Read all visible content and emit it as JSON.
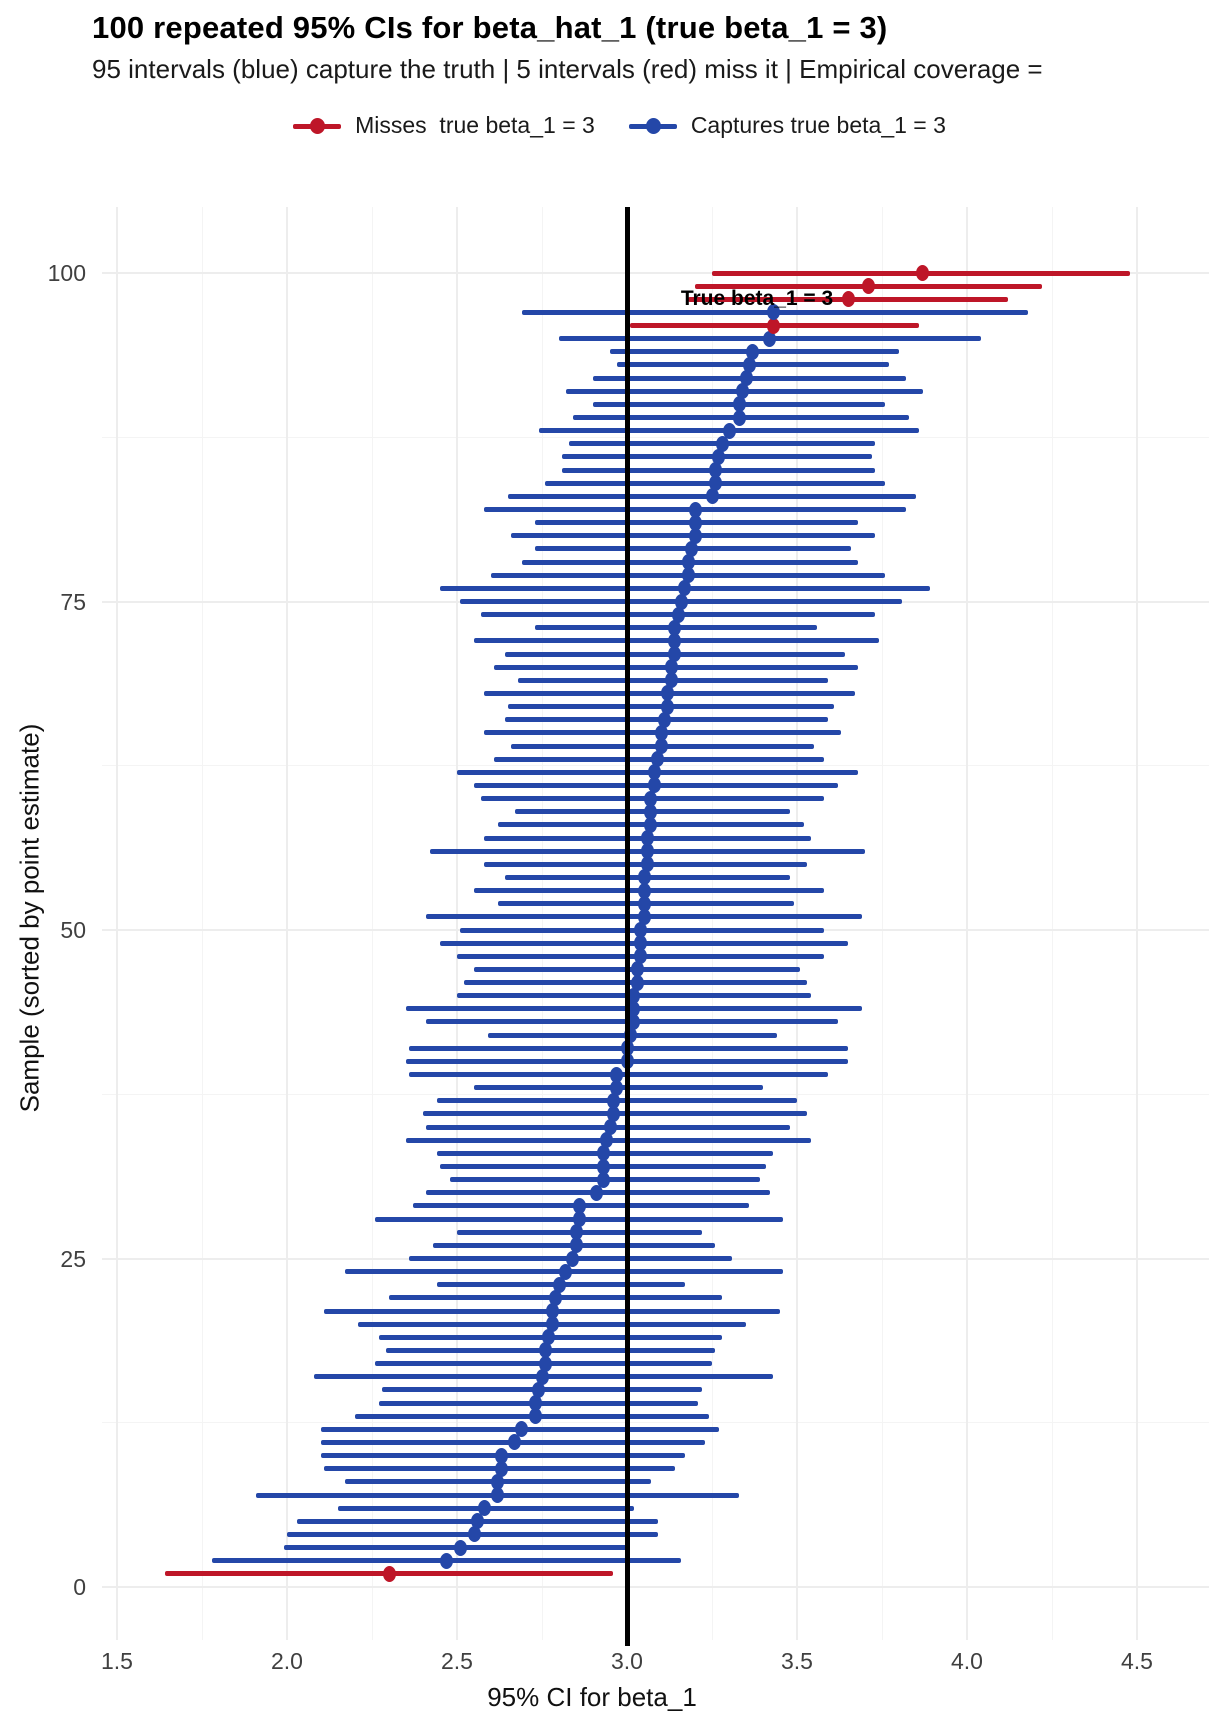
{
  "header": {
    "title": "100 repeated 95% CIs for beta_hat_1  (true beta_1 = 3)",
    "subtitle": "95 intervals (blue) capture the truth  |  5 intervals (red) miss it  |  Empirical coverage ="
  },
  "legend": {
    "items": [
      {
        "name": "misses",
        "label": "Misses  true beta_1 = 3",
        "color": "#BE1628"
      },
      {
        "name": "captures",
        "label": "Captures true beta_1 = 3",
        "color": "#2447A8"
      }
    ]
  },
  "annotation": {
    "text": "True beta_1 = 3"
  },
  "axes": {
    "x": {
      "title": "95% CI for beta_1",
      "tick_labels": [
        "1.5",
        "2.0",
        "2.5",
        "3.0",
        "3.5",
        "4.0",
        "4.5"
      ],
      "tick_values": [
        1.5,
        2.0,
        2.5,
        3.0,
        3.5,
        4.0,
        4.5
      ],
      "minor_values": [
        1.75,
        2.25,
        2.75,
        3.25,
        3.75,
        4.25
      ]
    },
    "y": {
      "title": "Sample (sorted by point estimate)",
      "tick_labels": [
        "0",
        "25",
        "50",
        "75",
        "100"
      ],
      "tick_values": [
        0,
        25,
        50,
        75,
        100
      ],
      "minor_values": [
        12.5,
        37.5,
        62.5,
        87.5
      ]
    }
  },
  "chart_data": {
    "type": "interval",
    "title": "100 repeated 95% CIs for beta_hat_1  (true beta_1 = 3)",
    "xlabel": "95% CI for beta_1",
    "ylabel": "Sample (sorted by point estimate)",
    "xlim": [
      1.45,
      4.71
    ],
    "ylim": [
      -4.5,
      104.5
    ],
    "grid": true,
    "legend_position": "top-center",
    "true_value": 3,
    "n_intervals": 100,
    "n_capture": 95,
    "n_miss": 5,
    "colors": {
      "capture": "#2447A8",
      "miss": "#BE1628",
      "reference_line": "#000000"
    },
    "columns": [
      "lower",
      "point",
      "upper",
      "miss_flag"
    ],
    "samples": [
      [
        1.64,
        2.3,
        2.96,
        1
      ],
      [
        1.78,
        2.47,
        3.16,
        0
      ],
      [
        1.99,
        2.51,
        3.01,
        0
      ],
      [
        2.0,
        2.55,
        3.09,
        0
      ],
      [
        2.03,
        2.56,
        3.09,
        0
      ],
      [
        2.15,
        2.58,
        3.02,
        0
      ],
      [
        1.91,
        2.62,
        3.33,
        0
      ],
      [
        2.17,
        2.62,
        3.07,
        0
      ],
      [
        2.11,
        2.63,
        3.14,
        0
      ],
      [
        2.1,
        2.63,
        3.17,
        0
      ],
      [
        2.1,
        2.67,
        3.23,
        0
      ],
      [
        2.1,
        2.69,
        3.27,
        0
      ],
      [
        2.2,
        2.73,
        3.24,
        0
      ],
      [
        2.27,
        2.73,
        3.21,
        0
      ],
      [
        2.28,
        2.74,
        3.22,
        0
      ],
      [
        2.08,
        2.75,
        3.43,
        0
      ],
      [
        2.26,
        2.76,
        3.25,
        0
      ],
      [
        2.29,
        2.76,
        3.26,
        0
      ],
      [
        2.27,
        2.77,
        3.28,
        0
      ],
      [
        2.21,
        2.78,
        3.35,
        0
      ],
      [
        2.11,
        2.78,
        3.45,
        0
      ],
      [
        2.3,
        2.79,
        3.28,
        0
      ],
      [
        2.44,
        2.8,
        3.17,
        0
      ],
      [
        2.17,
        2.82,
        3.46,
        0
      ],
      [
        2.36,
        2.84,
        3.31,
        0
      ],
      [
        2.43,
        2.85,
        3.26,
        0
      ],
      [
        2.5,
        2.85,
        3.22,
        0
      ],
      [
        2.26,
        2.86,
        3.46,
        0
      ],
      [
        2.37,
        2.86,
        3.36,
        0
      ],
      [
        2.41,
        2.91,
        3.42,
        0
      ],
      [
        2.48,
        2.93,
        3.39,
        0
      ],
      [
        2.45,
        2.93,
        3.41,
        0
      ],
      [
        2.44,
        2.93,
        3.43,
        0
      ],
      [
        2.35,
        2.94,
        3.54,
        0
      ],
      [
        2.41,
        2.95,
        3.48,
        0
      ],
      [
        2.4,
        2.96,
        3.53,
        0
      ],
      [
        2.44,
        2.96,
        3.5,
        0
      ],
      [
        2.55,
        2.97,
        3.4,
        0
      ],
      [
        2.36,
        2.97,
        3.59,
        0
      ],
      [
        2.35,
        3.0,
        3.65,
        0
      ],
      [
        2.36,
        3.0,
        3.65,
        0
      ],
      [
        2.59,
        3.01,
        3.44,
        0
      ],
      [
        2.41,
        3.02,
        3.62,
        0
      ],
      [
        2.35,
        3.02,
        3.69,
        0
      ],
      [
        2.5,
        3.02,
        3.54,
        0
      ],
      [
        2.52,
        3.03,
        3.53,
        0
      ],
      [
        2.55,
        3.03,
        3.51,
        0
      ],
      [
        2.5,
        3.04,
        3.58,
        0
      ],
      [
        2.45,
        3.04,
        3.65,
        0
      ],
      [
        2.51,
        3.04,
        3.58,
        0
      ],
      [
        2.41,
        3.05,
        3.69,
        0
      ],
      [
        2.62,
        3.05,
        3.49,
        0
      ],
      [
        2.55,
        3.05,
        3.58,
        0
      ],
      [
        2.64,
        3.05,
        3.48,
        0
      ],
      [
        2.58,
        3.06,
        3.53,
        0
      ],
      [
        2.42,
        3.06,
        3.7,
        0
      ],
      [
        2.58,
        3.06,
        3.54,
        0
      ],
      [
        2.62,
        3.07,
        3.52,
        0
      ],
      [
        2.67,
        3.07,
        3.48,
        0
      ],
      [
        2.57,
        3.07,
        3.58,
        0
      ],
      [
        2.55,
        3.08,
        3.62,
        0
      ],
      [
        2.5,
        3.08,
        3.68,
        0
      ],
      [
        2.61,
        3.09,
        3.58,
        0
      ],
      [
        2.66,
        3.1,
        3.55,
        0
      ],
      [
        2.58,
        3.1,
        3.63,
        0
      ],
      [
        2.64,
        3.11,
        3.59,
        0
      ],
      [
        2.65,
        3.12,
        3.61,
        0
      ],
      [
        2.58,
        3.12,
        3.67,
        0
      ],
      [
        2.68,
        3.13,
        3.59,
        0
      ],
      [
        2.61,
        3.13,
        3.68,
        0
      ],
      [
        2.64,
        3.14,
        3.64,
        0
      ],
      [
        2.55,
        3.14,
        3.74,
        0
      ],
      [
        2.73,
        3.14,
        3.56,
        0
      ],
      [
        2.57,
        3.15,
        3.73,
        0
      ],
      [
        2.51,
        3.16,
        3.81,
        0
      ],
      [
        2.45,
        3.17,
        3.89,
        0
      ],
      [
        2.6,
        3.18,
        3.76,
        0
      ],
      [
        2.69,
        3.18,
        3.68,
        0
      ],
      [
        2.73,
        3.19,
        3.66,
        0
      ],
      [
        2.66,
        3.2,
        3.73,
        0
      ],
      [
        2.73,
        3.2,
        3.68,
        0
      ],
      [
        2.58,
        3.2,
        3.82,
        0
      ],
      [
        2.65,
        3.25,
        3.85,
        0
      ],
      [
        2.76,
        3.26,
        3.76,
        0
      ],
      [
        2.81,
        3.26,
        3.73,
        0
      ],
      [
        2.81,
        3.27,
        3.72,
        0
      ],
      [
        2.83,
        3.28,
        3.73,
        0
      ],
      [
        2.74,
        3.3,
        3.86,
        0
      ],
      [
        2.84,
        3.33,
        3.83,
        0
      ],
      [
        2.9,
        3.33,
        3.76,
        0
      ],
      [
        2.82,
        3.34,
        3.87,
        0
      ],
      [
        2.9,
        3.35,
        3.82,
        0
      ],
      [
        2.97,
        3.36,
        3.77,
        0
      ],
      [
        2.95,
        3.37,
        3.8,
        0
      ],
      [
        2.8,
        3.42,
        4.04,
        0
      ],
      [
        3.01,
        3.43,
        3.86,
        1
      ],
      [
        2.69,
        3.43,
        4.18,
        0
      ],
      [
        3.18,
        3.65,
        4.12,
        1
      ],
      [
        3.2,
        3.71,
        4.22,
        1
      ],
      [
        3.25,
        3.87,
        4.48,
        1
      ]
    ]
  }
}
